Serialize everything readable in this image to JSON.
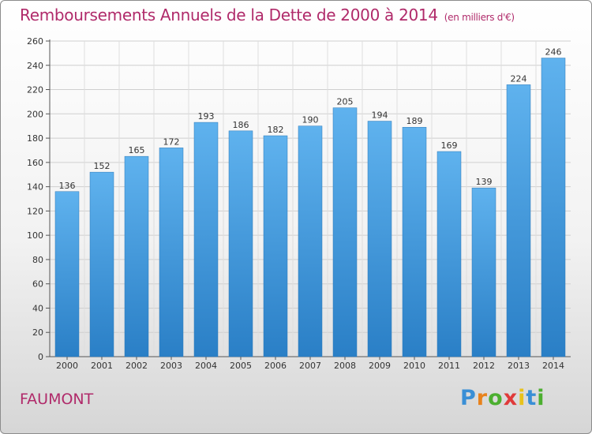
{
  "chart_data": {
    "type": "bar",
    "title": "Remboursements Annuels de la Dette de 2000 à 2014",
    "subtitle": "(en milliers d'€)",
    "categories": [
      "2000",
      "2001",
      "2002",
      "2003",
      "2004",
      "2005",
      "2006",
      "2007",
      "2008",
      "2009",
      "2010",
      "2011",
      "2012",
      "2013",
      "2014"
    ],
    "values": [
      136,
      152,
      165,
      172,
      193,
      186,
      182,
      190,
      205,
      194,
      189,
      169,
      139,
      224,
      246
    ],
    "ylim": [
      0,
      260
    ],
    "yticks": [
      0,
      20,
      40,
      60,
      80,
      100,
      120,
      140,
      160,
      180,
      200,
      220,
      240,
      260
    ],
    "grid": true,
    "xlabel": "",
    "ylabel": "",
    "bar_color": "#4a9fe0"
  },
  "footer": {
    "town": "FAUMONT",
    "logo": {
      "letters": [
        "P",
        "r",
        "o",
        "x",
        "i",
        "t",
        "i"
      ],
      "colors": [
        "#3a8fd6",
        "#e8821c",
        "#4caf30",
        "#e03a3a",
        "#e8c21c",
        "#3a8fd6",
        "#4caf30"
      ]
    }
  }
}
